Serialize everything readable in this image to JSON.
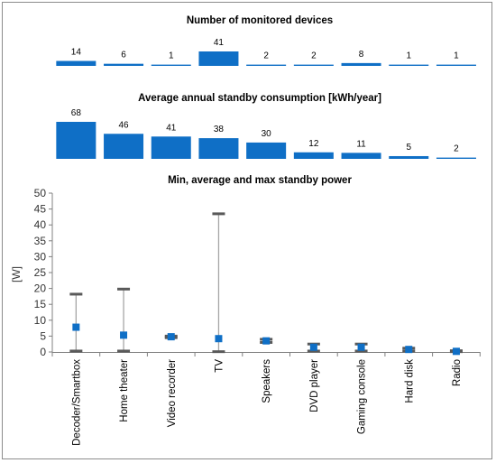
{
  "colors": {
    "bar": "#0f6fc6",
    "range_line": "#a6a6a6",
    "cap": "#595959",
    "avg_marker": "#0f6fc6"
  },
  "chart_data": [
    {
      "type": "bar",
      "title": "Number of monitored devices",
      "categories": [
        "Decoder/Smartbox",
        "Home theater",
        "Video recorder",
        "TV",
        "Speakers",
        "DVD player",
        "Gaming console",
        "Hard disk",
        "Radio"
      ],
      "values": [
        14,
        6,
        1,
        41,
        2,
        2,
        8,
        1,
        1
      ],
      "axes_visible": false
    },
    {
      "type": "bar",
      "title": "Average annual standby consumption [kWh/year]",
      "categories": [
        "Decoder/Smartbox",
        "Home theater",
        "Video recorder",
        "TV",
        "Speakers",
        "DVD player",
        "Gaming console",
        "Hard disk",
        "Radio"
      ],
      "values": [
        68,
        46,
        41,
        38,
        30,
        12,
        11,
        5,
        2
      ],
      "axes_visible": false
    },
    {
      "type": "scatter",
      "title": "Min, average and max standby power",
      "ylabel": "[W]",
      "ylim": [
        0,
        50
      ],
      "yticks": [
        "0",
        "5",
        "10",
        "15",
        "20",
        "25",
        "30",
        "35",
        "40",
        "45",
        "50"
      ],
      "categories": [
        "Decoder/Smartbox",
        "Home theater",
        "Video recorder",
        "TV",
        "Speakers",
        "DVD player",
        "Gaming console",
        "Hard disk",
        "Radio"
      ],
      "min": [
        0.3,
        0.3,
        4.5,
        0.1,
        3.0,
        0.3,
        0.3,
        0.3,
        0.1
      ],
      "avg": [
        7.8,
        5.3,
        4.8,
        4.2,
        3.5,
        1.5,
        1.5,
        0.8,
        0.2
      ],
      "max": [
        18.2,
        19.8,
        5.0,
        43.5,
        4.0,
        2.5,
        2.5,
        1.2,
        0.4
      ],
      "grid": false
    }
  ]
}
